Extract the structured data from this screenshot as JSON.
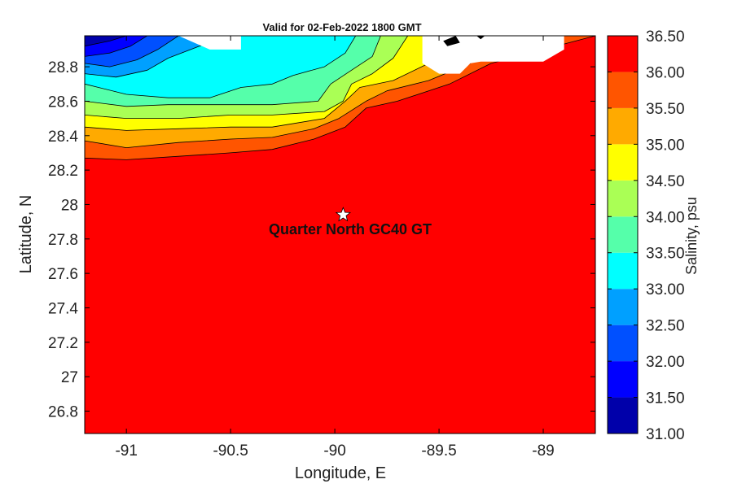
{
  "chart_data": {
    "type": "heatmap",
    "title": "Valid for 02-Feb-2022 1800 GMT",
    "xlabel": "Longitude, E",
    "ylabel": "Latitude, N",
    "xlim": [
      -91.2,
      -88.75
    ],
    "ylim": [
      26.67,
      28.98
    ],
    "x_ticks": [
      -91,
      -90.5,
      -90,
      -89.5,
      -89
    ],
    "x_tick_labels": [
      "-91",
      "-90.5",
      "-90",
      "-89.5",
      "-89"
    ],
    "y_ticks": [
      26.8,
      27,
      27.2,
      27.4,
      27.6,
      27.8,
      28,
      28.2,
      28.4,
      28.6,
      28.8
    ],
    "y_tick_labels": [
      "26.8",
      "27",
      "27.2",
      "27.4",
      "27.6",
      "27.8",
      "28",
      "28.2",
      "28.4",
      "28.6",
      "28.8"
    ],
    "colorbar": {
      "label": "Salinity, psu",
      "levels": [
        31.0,
        31.5,
        32.0,
        32.5,
        33.0,
        33.5,
        34.0,
        34.5,
        35.0,
        35.5,
        36.0,
        36.5
      ],
      "tick_labels": [
        "31.00",
        "31.50",
        "32.00",
        "32.50",
        "33.00",
        "33.50",
        "34.00",
        "34.50",
        "35.00",
        "35.50",
        "36.00",
        "36.50"
      ],
      "colors": [
        "#0000aa",
        "#0000ff",
        "#0050ff",
        "#00a0ff",
        "#00ffff",
        "#55ffaa",
        "#aaff55",
        "#ffff00",
        "#ffaa00",
        "#ff5500",
        "#ff0000"
      ]
    },
    "contour_bands": [
      {
        "level": 36.0,
        "color": "#ff5500",
        "points": [
          [
            -91.2,
            28.98
          ],
          [
            -88.75,
            28.98
          ],
          [
            -88.75,
            28.98
          ],
          [
            -89.0,
            28.9
          ],
          [
            -89.25,
            28.82
          ],
          [
            -89.45,
            28.7
          ],
          [
            -89.7,
            28.6
          ],
          [
            -89.85,
            28.56
          ],
          [
            -89.95,
            28.45
          ],
          [
            -90.1,
            28.38
          ],
          [
            -90.3,
            28.32
          ],
          [
            -90.5,
            28.3
          ],
          [
            -90.75,
            28.28
          ],
          [
            -91.0,
            28.26
          ],
          [
            -91.2,
            28.27
          ]
        ]
      },
      {
        "level": 35.5,
        "color": "#ffaa00",
        "points": [
          [
            -91.2,
            28.98
          ],
          [
            -89.3,
            28.98
          ],
          [
            -89.35,
            28.82
          ],
          [
            -89.55,
            28.72
          ],
          [
            -89.75,
            28.66
          ],
          [
            -89.85,
            28.6
          ],
          [
            -89.98,
            28.5
          ],
          [
            -90.1,
            28.44
          ],
          [
            -90.3,
            28.39
          ],
          [
            -90.5,
            28.38
          ],
          [
            -90.75,
            28.36
          ],
          [
            -91.0,
            28.33
          ],
          [
            -91.2,
            28.37
          ]
        ]
      },
      {
        "level": 35.0,
        "color": "#ffff00",
        "points": [
          [
            -91.2,
            28.98
          ],
          [
            -89.5,
            28.98
          ],
          [
            -89.55,
            28.82
          ],
          [
            -89.72,
            28.72
          ],
          [
            -89.88,
            28.68
          ],
          [
            -89.95,
            28.6
          ],
          [
            -90.05,
            28.5
          ],
          [
            -90.3,
            28.45
          ],
          [
            -90.5,
            28.45
          ],
          [
            -90.75,
            28.44
          ],
          [
            -91.0,
            28.43
          ],
          [
            -91.2,
            28.45
          ]
        ]
      },
      {
        "level": 34.5,
        "color": "#aaff55",
        "points": [
          [
            -91.2,
            28.98
          ],
          [
            -89.65,
            28.98
          ],
          [
            -89.72,
            28.85
          ],
          [
            -89.82,
            28.76
          ],
          [
            -89.92,
            28.7
          ],
          [
            -89.96,
            28.6
          ],
          [
            -90.05,
            28.54
          ],
          [
            -90.3,
            28.52
          ],
          [
            -90.5,
            28.52
          ],
          [
            -90.75,
            28.5
          ],
          [
            -91.0,
            28.5
          ],
          [
            -91.2,
            28.52
          ]
        ]
      },
      {
        "level": 34.0,
        "color": "#55ffaa",
        "points": [
          [
            -91.2,
            28.98
          ],
          [
            -89.78,
            28.98
          ],
          [
            -89.82,
            28.86
          ],
          [
            -89.92,
            28.78
          ],
          [
            -90.02,
            28.7
          ],
          [
            -90.08,
            28.6
          ],
          [
            -90.3,
            28.58
          ],
          [
            -90.55,
            28.58
          ],
          [
            -90.8,
            28.58
          ],
          [
            -91.0,
            28.57
          ],
          [
            -91.2,
            28.6
          ]
        ]
      },
      {
        "level": 33.5,
        "color": "#00ffff",
        "points": [
          [
            -91.2,
            28.98
          ],
          [
            -89.9,
            28.98
          ],
          [
            -89.95,
            28.88
          ],
          [
            -90.05,
            28.8
          ],
          [
            -90.2,
            28.75
          ],
          [
            -90.3,
            28.7
          ],
          [
            -90.45,
            28.68
          ],
          [
            -90.6,
            28.62
          ],
          [
            -90.8,
            28.62
          ],
          [
            -91.0,
            28.64
          ],
          [
            -91.2,
            28.7
          ]
        ]
      },
      {
        "level": 33.0,
        "color": "#00a0ff",
        "points": [
          [
            -91.2,
            28.98
          ],
          [
            -90.5,
            28.98
          ],
          [
            -90.65,
            28.92
          ],
          [
            -90.8,
            28.85
          ],
          [
            -90.9,
            28.78
          ],
          [
            -91.05,
            28.74
          ],
          [
            -91.2,
            28.76
          ]
        ]
      },
      {
        "level": 32.5,
        "color": "#0050ff",
        "points": [
          [
            -91.2,
            28.98
          ],
          [
            -90.75,
            28.98
          ],
          [
            -90.85,
            28.9
          ],
          [
            -90.95,
            28.84
          ],
          [
            -91.08,
            28.8
          ],
          [
            -91.2,
            28.82
          ]
        ]
      },
      {
        "level": 32.0,
        "color": "#0000ff",
        "points": [
          [
            -91.2,
            28.98
          ],
          [
            -90.9,
            28.98
          ],
          [
            -90.98,
            28.92
          ],
          [
            -91.08,
            28.88
          ],
          [
            -91.2,
            28.86
          ]
        ]
      },
      {
        "level": 31.5,
        "color": "#0000aa",
        "points": [
          [
            -91.2,
            28.98
          ],
          [
            -91.0,
            28.98
          ],
          [
            -91.08,
            28.95
          ],
          [
            -91.2,
            28.92
          ]
        ]
      }
    ],
    "background_color": "#ff0000",
    "masked_regions": [
      [
        [
          -90.75,
          28.98
        ],
        [
          -90.45,
          28.98
        ],
        [
          -90.45,
          28.9
        ],
        [
          -90.6,
          28.9
        ]
      ],
      [
        [
          -89.58,
          28.98
        ],
        [
          -88.9,
          28.98
        ],
        [
          -88.9,
          28.9
        ],
        [
          -89.0,
          28.83
        ],
        [
          -89.3,
          28.83
        ],
        [
          -89.35,
          28.82
        ],
        [
          -89.4,
          28.76
        ],
        [
          -89.5,
          28.76
        ],
        [
          -89.58,
          28.82
        ]
      ]
    ],
    "land_markers": [
      [
        [
          -89.48,
          28.95
        ],
        [
          -89.42,
          28.98
        ],
        [
          -89.4,
          28.94
        ],
        [
          -89.46,
          28.92
        ]
      ],
      [
        [
          -89.32,
          28.98
        ],
        [
          -89.28,
          28.98
        ],
        [
          -89.3,
          28.96
        ]
      ]
    ],
    "site": {
      "label": "Quarter North GC40 GT",
      "lon": -89.96,
      "lat": 27.94
    }
  }
}
